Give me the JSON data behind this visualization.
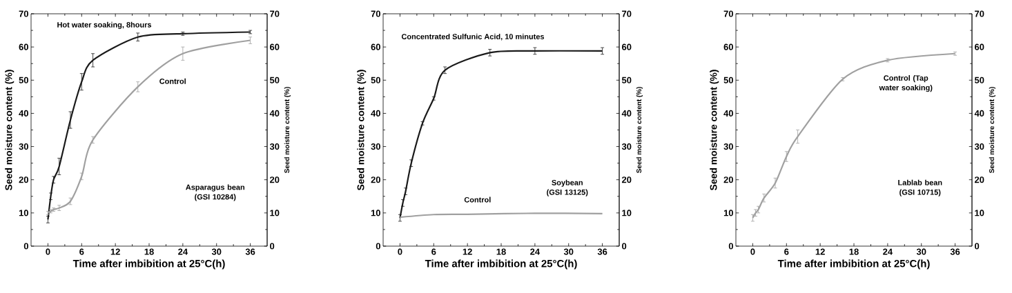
{
  "chart_data": [
    {
      "type": "line",
      "xlabel": "Time  after  imbibition  at  25°C(h)",
      "ylabel": "Seed moisture content (%)",
      "y2label": "Seed moisture content (%)",
      "x": [
        0,
        0.5,
        1,
        2,
        4,
        6,
        8,
        16,
        24,
        36
      ],
      "series": [
        {
          "color": "#1a1a1a",
          "values": [
            8,
            15,
            20,
            24,
            38,
            49.5,
            56,
            63,
            64,
            64.5
          ],
          "errors": [
            1,
            1,
            1,
            2.5,
            2.5,
            2.5,
            2,
            1.2,
            0.5,
            0.5
          ]
        },
        {
          "color": "#a0a0a0",
          "values": [
            10,
            10.5,
            11,
            11.5,
            13.5,
            21,
            32,
            48,
            58,
            62
          ],
          "errors": [
            0.5,
            0.5,
            0.5,
            0.8,
            1,
            1,
            1,
            1.5,
            2,
            1
          ]
        }
      ],
      "xlim": [
        -3,
        39
      ],
      "xticks": [
        0,
        6,
        12,
        18,
        24,
        30,
        36
      ],
      "ylim": [
        0,
        70
      ],
      "yticks": [
        0,
        10,
        20,
        30,
        40,
        50,
        60,
        70
      ],
      "y2lim": [
        0,
        70
      ],
      "y2ticks": [
        0,
        10,
        20,
        30,
        40,
        50,
        60,
        70
      ],
      "annotations": [
        "Hot  water  soaking,  8hours",
        "Control",
        "Asparagus  bean (GSI  10284)"
      ]
    },
    {
      "type": "line",
      "xlabel": "Time  after  imbibition  at  25°C(h)",
      "ylabel": "Seed moisture content (%)",
      "y2label": "Seed moisture content (%)",
      "x": [
        0,
        0.5,
        1,
        2,
        4,
        6,
        8,
        16,
        24,
        36
      ],
      "series": [
        {
          "color": "#1a1a1a",
          "values": [
            8.5,
            13,
            16.5,
            25,
            37,
            44.5,
            53,
            58.3,
            58.8,
            58.8
          ],
          "errors": [
            1,
            1,
            1,
            1,
            0.5,
            0.5,
            1,
            1,
            1,
            1
          ]
        },
        {
          "color": "#a0a0a0",
          "x": [
            0,
            6,
            12,
            24,
            36
          ],
          "values": [
            8.7,
            9.5,
            9.6,
            9.9,
            9.8
          ]
        }
      ],
      "xlim": [
        -3,
        39
      ],
      "xticks": [
        0,
        6,
        12,
        18,
        24,
        30,
        36
      ],
      "ylim": [
        0,
        70
      ],
      "yticks": [
        0,
        10,
        20,
        30,
        40,
        50,
        60,
        70
      ],
      "y2lim": [
        0,
        70
      ],
      "y2ticks": [
        0,
        10,
        20,
        30,
        40,
        50,
        60,
        70
      ],
      "annotations": [
        "Concentrated  Sulfunic  Acid,  10  minutes",
        "Control",
        "Soybean (GSI  13125)"
      ]
    },
    {
      "type": "line",
      "xlabel": "Time  after  imbibition  at  25°C(h)",
      "ylabel": "Seed moisture content (%)",
      "y2label": "Seed moisture content (%)",
      "x": [
        0,
        0.5,
        1,
        2,
        4,
        6,
        8,
        16,
        24,
        36
      ],
      "series": [
        {
          "color": "#a0a0a0",
          "values": [
            8.5,
            10,
            11,
            14.5,
            19,
            27,
            33,
            50.3,
            56,
            58
          ],
          "errors": [
            1,
            1,
            1,
            1.2,
            1.5,
            1.5,
            2,
            0.5,
            0.5,
            0.5
          ]
        }
      ],
      "xlim": [
        -3,
        39
      ],
      "xticks": [
        0,
        6,
        12,
        18,
        24,
        30,
        36
      ],
      "ylim": [
        0,
        70
      ],
      "yticks": [
        0,
        10,
        20,
        30,
        40,
        50,
        60,
        70
      ],
      "y2lim": [
        0,
        70
      ],
      "y2ticks": [
        0,
        10,
        20,
        30,
        40,
        50,
        60,
        70
      ],
      "annotations": [
        "Control (Tap  water  soaking)",
        "Lablab  bean (GSI  10715)"
      ]
    }
  ]
}
